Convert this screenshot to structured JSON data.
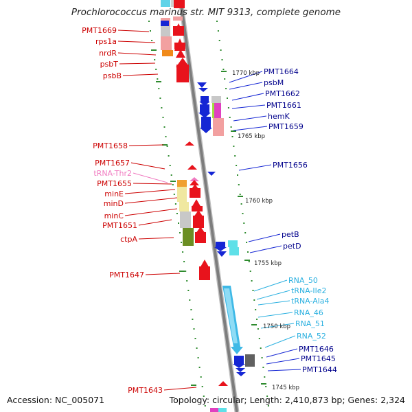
{
  "title": "Prochlorococcus marinus str. MIT 9313, complete genome",
  "footer": {
    "accession": "Accession: NC_005071",
    "summary": "Topology: circular; Length: 2,410,873 bp; Genes: 2,324"
  },
  "colors": {
    "forward": "#e8131c",
    "reverse": "#1526d4",
    "rna": "#3fb9e6",
    "trna_pink": "#f07ac0",
    "backbone": "#8a8a8a",
    "tick": "#2e8b2e",
    "label_reverse_text": "#00008b",
    "label_rna_text": "#2ab0e0",
    "label_forward_text": "#cc0000"
  },
  "kbp_marks": [
    {
      "label": "1770 kbp"
    },
    {
      "label": "1765 kbp"
    },
    {
      "label": "1760 kbp"
    },
    {
      "label": "1755 kbp"
    },
    {
      "label": "1750 kbp"
    },
    {
      "label": "1745 kbp"
    }
  ],
  "left_labels": [
    {
      "text": "PMT1669",
      "kind": "gene"
    },
    {
      "text": "rps1a",
      "kind": "gene"
    },
    {
      "text": "nrdR",
      "kind": "gene"
    },
    {
      "text": "psbT",
      "kind": "gene"
    },
    {
      "text": "psbB",
      "kind": "gene"
    },
    {
      "text": "PMT1658",
      "kind": "gene"
    },
    {
      "text": "PMT1657",
      "kind": "gene"
    },
    {
      "text": "tRNA-Thr2",
      "kind": "trna"
    },
    {
      "text": "PMT1655",
      "kind": "gene"
    },
    {
      "text": "minE",
      "kind": "gene"
    },
    {
      "text": "minD",
      "kind": "gene"
    },
    {
      "text": "minC",
      "kind": "gene"
    },
    {
      "text": "PMT1651",
      "kind": "gene"
    },
    {
      "text": "ctpA",
      "kind": "gene"
    },
    {
      "text": "PMT1647",
      "kind": "gene"
    },
    {
      "text": "PMT1643",
      "kind": "gene"
    }
  ],
  "right_labels": [
    {
      "text": "PMT1664",
      "kind": "gene"
    },
    {
      "text": "psbM",
      "kind": "gene"
    },
    {
      "text": "PMT1662",
      "kind": "gene"
    },
    {
      "text": "PMT1661",
      "kind": "gene"
    },
    {
      "text": "hemK",
      "kind": "gene"
    },
    {
      "text": "PMT1659",
      "kind": "gene"
    },
    {
      "text": "PMT1656",
      "kind": "gene"
    },
    {
      "text": "petB",
      "kind": "gene"
    },
    {
      "text": "petD",
      "kind": "gene"
    },
    {
      "text": "RNA_50",
      "kind": "rna"
    },
    {
      "text": "tRNA-Ile2",
      "kind": "rna"
    },
    {
      "text": "tRNA-Ala4",
      "kind": "rna"
    },
    {
      "text": "RNA_46",
      "kind": "rna"
    },
    {
      "text": "RNA_51",
      "kind": "rna"
    },
    {
      "text": "RNA_52",
      "kind": "rna"
    },
    {
      "text": "PMT1646",
      "kind": "gene"
    },
    {
      "text": "PMT1645",
      "kind": "gene"
    },
    {
      "text": "PMT1644",
      "kind": "gene"
    }
  ]
}
